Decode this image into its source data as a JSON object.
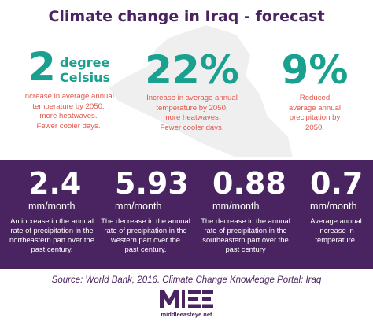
{
  "title": "Climate change in Iraq - forecast",
  "colors": {
    "purple": "#4a2460",
    "teal": "#1aa08e",
    "red": "#e2574c",
    "map_gray": "#efefef"
  },
  "top_stats": [
    {
      "value": "2",
      "unit_line1": "degree",
      "unit_line2": "Celsius",
      "desc": [
        "Increase in average annual",
        "temperature by 2050.",
        "more heatwaves.",
        "Fewer cooler days."
      ]
    },
    {
      "value": "22%",
      "desc": [
        "Increase in average annual",
        "temperature by 2050.",
        "more heatwaves.",
        "Fewer cooler days."
      ]
    },
    {
      "value": "9%",
      "desc": [
        "Reduced",
        "average annual",
        "precipitation by",
        "2050."
      ]
    }
  ],
  "bottom_stats": [
    {
      "value": "2.4",
      "unit": "mm/month",
      "desc": [
        "An increase in the annual",
        "rate of precipitation in the",
        "northeastern part over the",
        "past century."
      ]
    },
    {
      "value": "5.93",
      "unit": "mm/month",
      "desc": [
        "The decrease in the annual",
        "rate of precipitation in the",
        "western part over the",
        "past century."
      ]
    },
    {
      "value": "0.88",
      "unit": "mm/month",
      "desc": [
        "The decrease in the annual",
        "rate of precipitation in the",
        "southeastern part over the",
        "past century"
      ]
    },
    {
      "value": "0.7",
      "unit": "mm/month",
      "desc": [
        "Average annual",
        "increase in",
        "temperature."
      ]
    }
  ],
  "source": "Source: World Bank, 2016. Climate Change Knowledge Portal: Iraq",
  "logo": {
    "text": "MEE",
    "caption": "middleeasteye.net"
  }
}
